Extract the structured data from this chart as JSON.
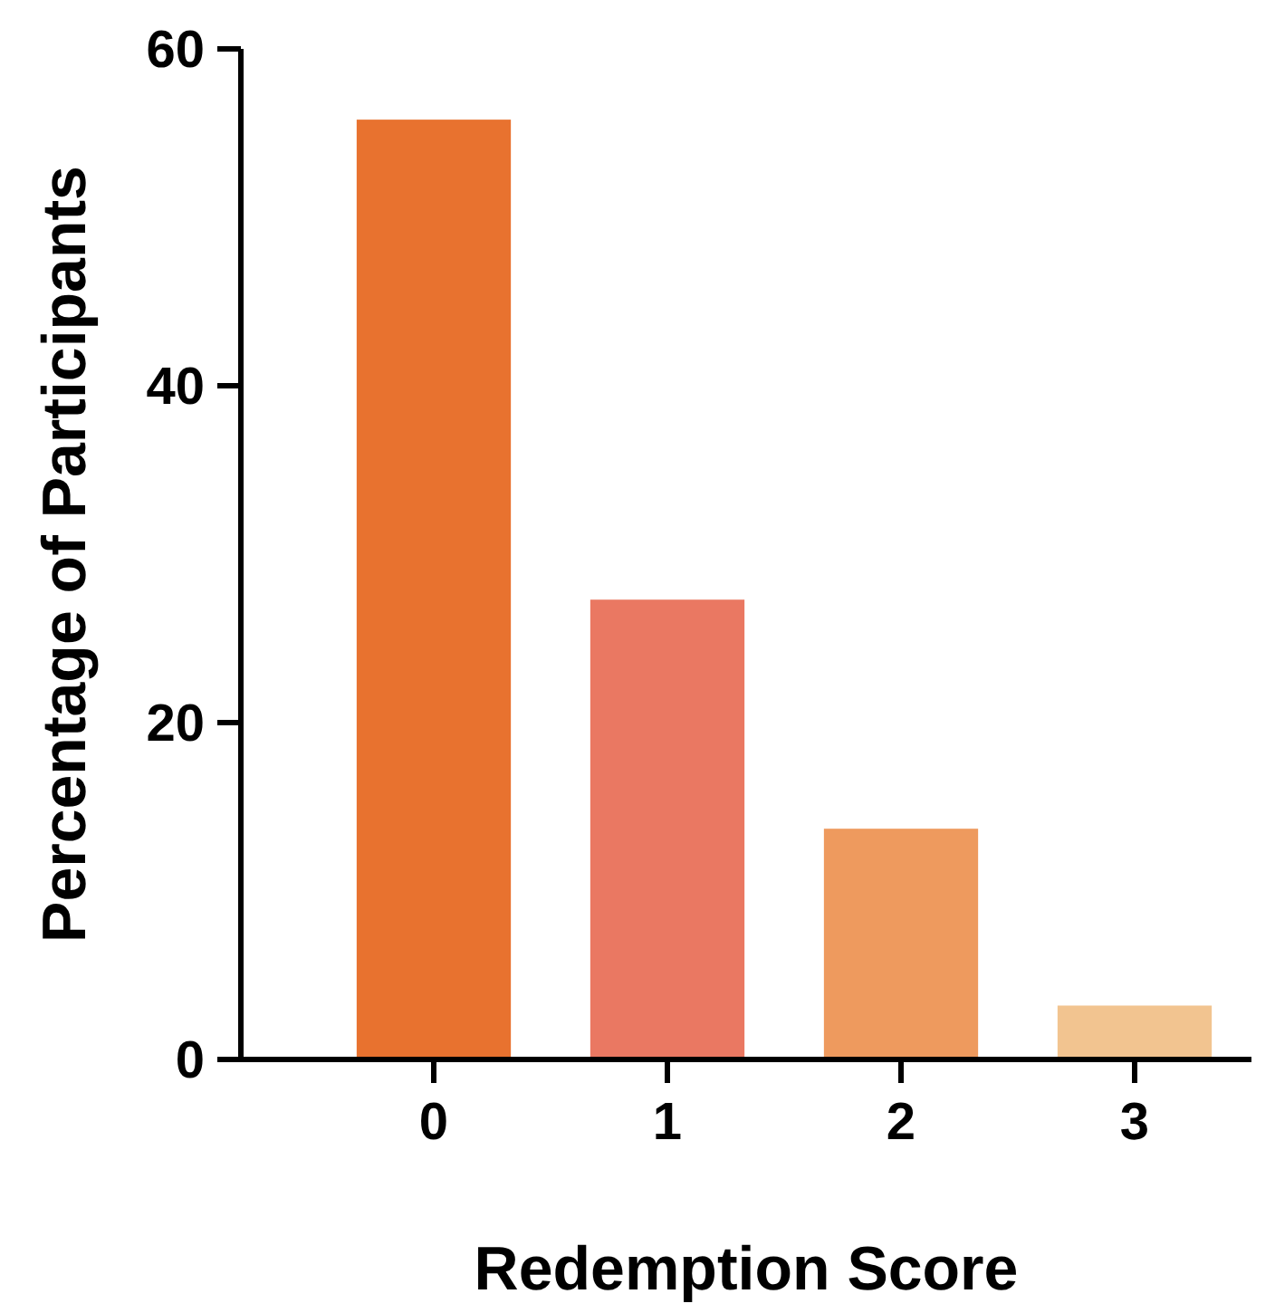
{
  "chart_data": {
    "type": "bar",
    "xlabel": "Redemption Score",
    "ylabel": "Percentage of Participants",
    "categories": [
      "0",
      "1",
      "2",
      "3"
    ],
    "values": [
      55.8,
      27.3,
      13.7,
      3.2
    ],
    "colors": [
      "#e8722f",
      "#ea7862",
      "#ee9a5e",
      "#f2c490"
    ],
    "ylim": [
      0,
      60
    ],
    "yticks": [
      0,
      20,
      40,
      60
    ],
    "grid": false
  }
}
